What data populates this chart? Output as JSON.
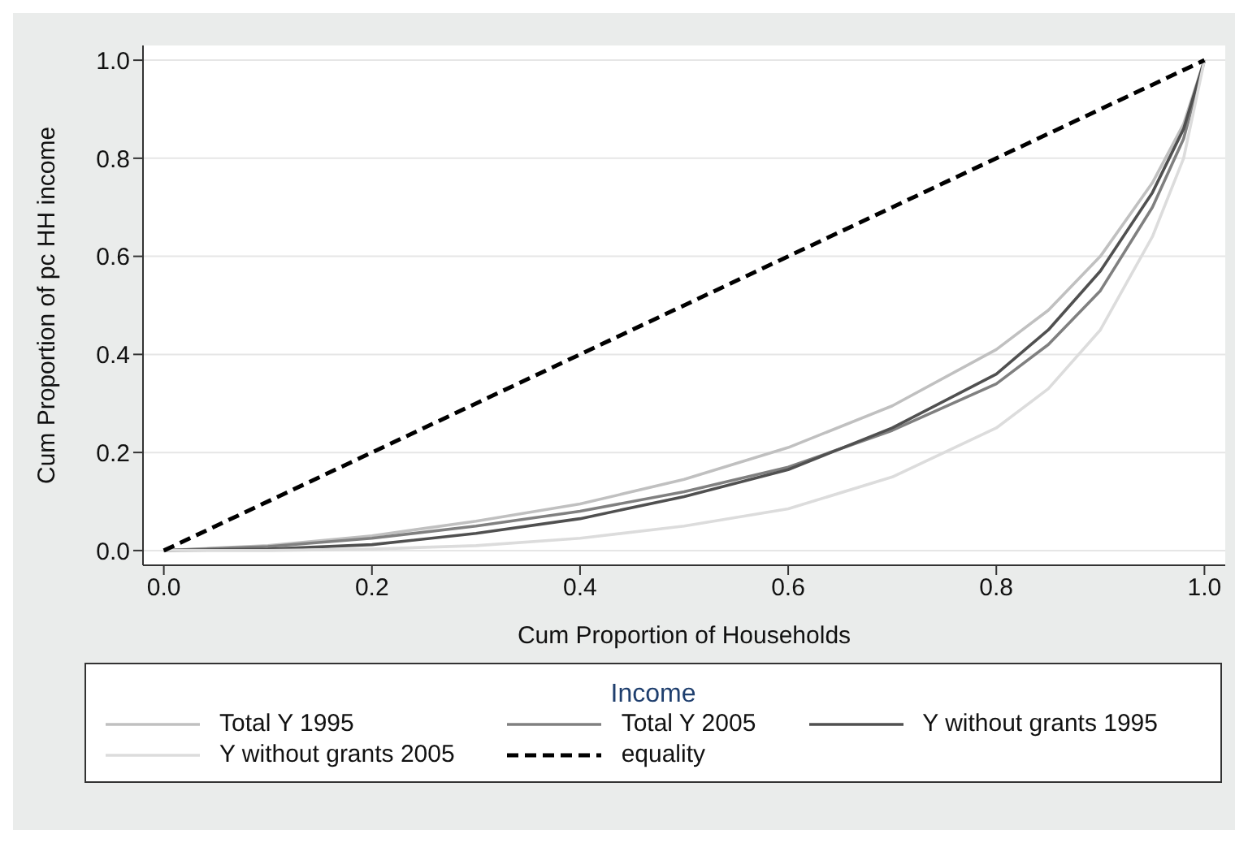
{
  "chart_data": {
    "type": "line",
    "xlabel": "Cum Proportion of Households",
    "ylabel": "Cum Proportion of pc HH income",
    "legend_title": "Income",
    "legend": "bottom",
    "grid": "y",
    "marker": "none",
    "x": [
      0,
      0.1,
      0.2,
      0.3,
      0.4,
      0.5,
      0.6,
      0.7,
      0.8,
      0.85,
      0.9,
      0.95,
      0.98,
      1
    ],
    "xlim": [
      -0.02,
      1.02
    ],
    "xticks": [
      {
        "value": 0,
        "label": "0.0"
      },
      {
        "value": 0.2,
        "label": "0.2"
      },
      {
        "value": 0.4,
        "label": "0.4"
      },
      {
        "value": 0.6,
        "label": "0.6"
      },
      {
        "value": 0.8,
        "label": "0.8"
      },
      {
        "value": 1,
        "label": "1.0"
      }
    ],
    "ylim": [
      -0.03,
      1.03
    ],
    "yticks": [
      {
        "value": 0,
        "label": "0.0"
      },
      {
        "value": 0.2,
        "label": "0.2"
      },
      {
        "value": 0.4,
        "label": "0.4"
      },
      {
        "value": 0.6,
        "label": "0.6"
      },
      {
        "value": 0.8,
        "label": "0.8"
      },
      {
        "value": 1,
        "label": "1.0"
      }
    ],
    "series": [
      {
        "name": "Total Y 1995",
        "color": "#c0c0c0",
        "line_style": "solid",
        "values": [
          0,
          0.01,
          0.03,
          0.06,
          0.095,
          0.145,
          0.21,
          0.295,
          0.41,
          0.49,
          0.6,
          0.75,
          0.87,
          1
        ]
      },
      {
        "name": "Total Y 2005",
        "color": "#808080",
        "line_style": "solid",
        "values": [
          0,
          0.008,
          0.025,
          0.05,
          0.08,
          0.12,
          0.17,
          0.245,
          0.34,
          0.42,
          0.53,
          0.7,
          0.84,
          1
        ]
      },
      {
        "name": "Y without grants 1995",
        "color": "#505050",
        "line_style": "solid",
        "values": [
          0,
          0.003,
          0.012,
          0.035,
          0.065,
          0.11,
          0.165,
          0.25,
          0.36,
          0.45,
          0.57,
          0.73,
          0.86,
          1
        ]
      },
      {
        "name": "Y without grants 2005",
        "color": "#dcdcdc",
        "line_style": "solid",
        "values": [
          0,
          0,
          0.003,
          0.01,
          0.025,
          0.05,
          0.085,
          0.15,
          0.25,
          0.33,
          0.45,
          0.64,
          0.8,
          1
        ]
      },
      {
        "name": "equality",
        "color": "#000000",
        "line_style": "dashed",
        "x": [
          0,
          1
        ],
        "values": [
          0,
          1
        ]
      }
    ]
  }
}
